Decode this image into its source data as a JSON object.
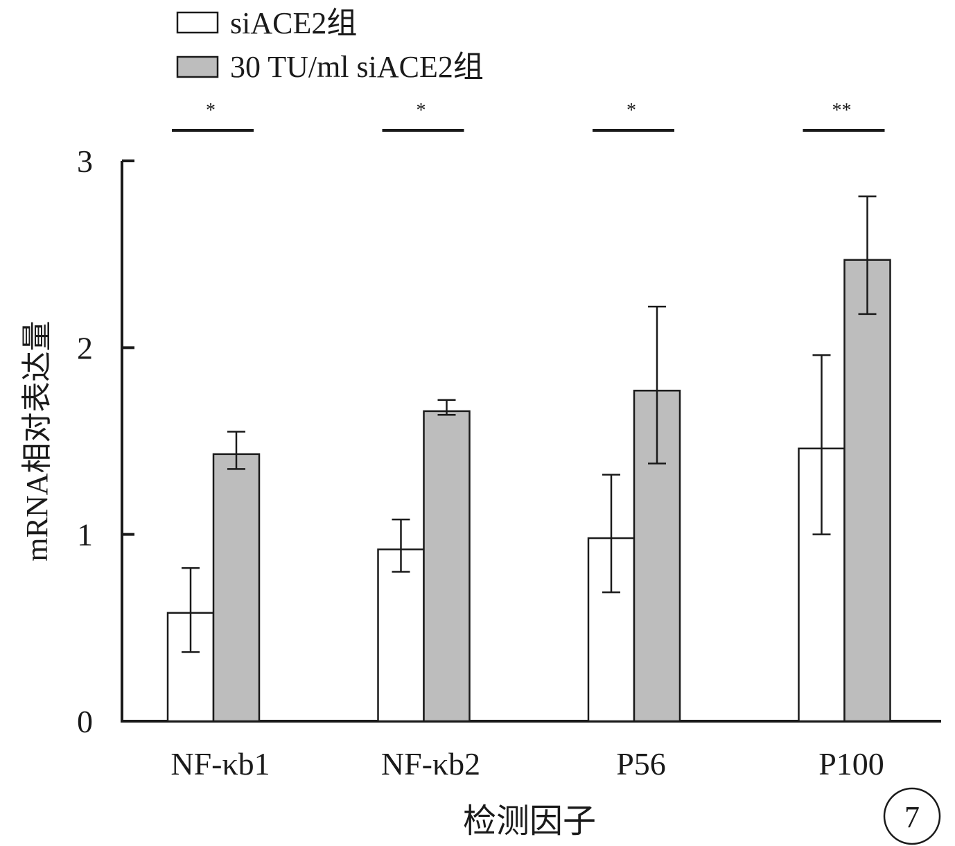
{
  "chart_data": {
    "type": "bar",
    "categories": [
      "NF-κb1",
      "NF-κb2",
      "P56",
      "P100"
    ],
    "series": [
      {
        "name": "siACE2组",
        "values": [
          0.58,
          0.92,
          0.98,
          1.46
        ],
        "err_low": [
          0.37,
          0.8,
          0.69,
          1.0
        ],
        "err_high": [
          0.82,
          1.08,
          1.32,
          1.96
        ],
        "color": "#ffffff"
      },
      {
        "name": "30 TU/ml siACE2组",
        "values": [
          1.43,
          1.66,
          1.77,
          2.47
        ],
        "err_low": [
          1.35,
          1.64,
          1.38,
          2.18
        ],
        "err_high": [
          1.55,
          1.72,
          2.22,
          2.81
        ],
        "color": "#bdbdbd"
      }
    ],
    "significance": [
      "*",
      "*",
      "*",
      "**"
    ],
    "xlabel": "检测因子",
    "ylabel": "mRNA相对表达量",
    "ylim": [
      0,
      3
    ],
    "yticks": [
      "0",
      "1",
      "2",
      "3"
    ],
    "legend_position": "top-left",
    "grid": false,
    "panel_label": "7"
  }
}
